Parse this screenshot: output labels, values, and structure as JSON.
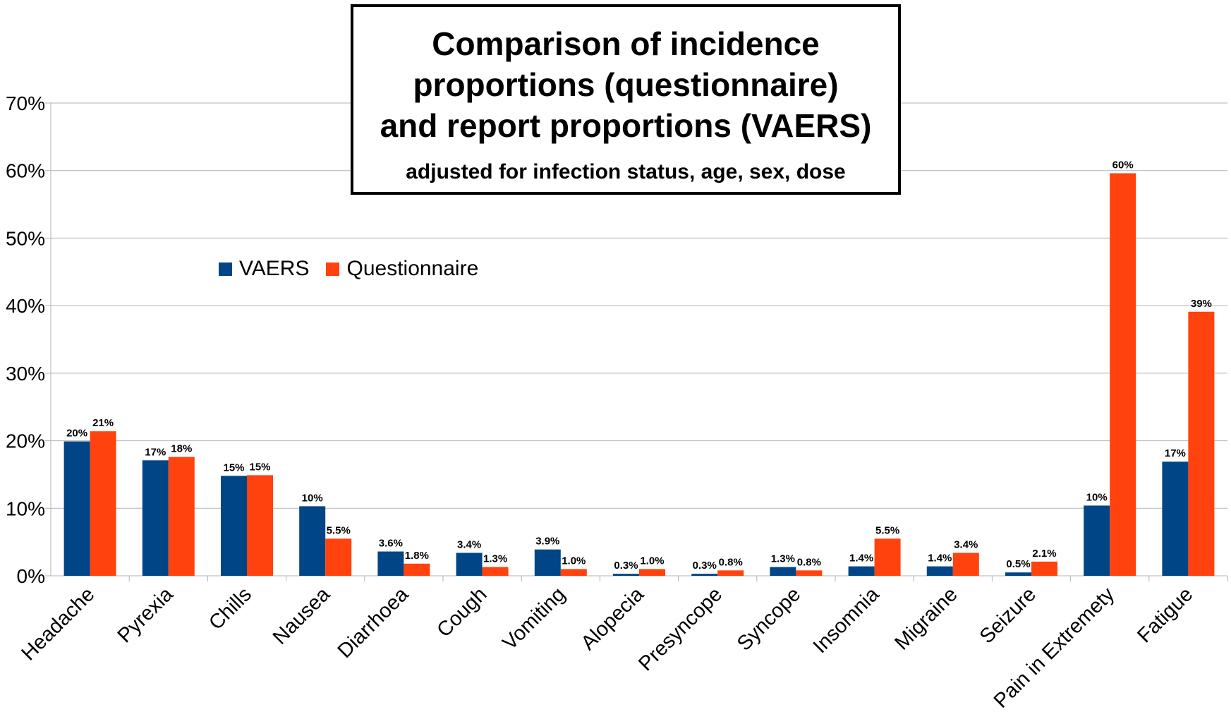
{
  "chart_data": {
    "type": "bar",
    "title": "Comparison of incidence proportions (questionnaire) and report proportions (VAERS)",
    "title_lines": [
      "Comparison of incidence",
      "proportions (questionnaire)",
      "and report proportions (VAERS)"
    ],
    "subtitle": "adjusted for infection status, age, sex, dose",
    "xlabel": "",
    "ylabel": "",
    "ylim": [
      0,
      70
    ],
    "yticks": [
      0,
      10,
      20,
      30,
      40,
      50,
      60,
      70
    ],
    "ytick_labels": [
      "0%",
      "10%",
      "20%",
      "30%",
      "40%",
      "50%",
      "60%",
      "70%"
    ],
    "grid": true,
    "legend_position": "upper-left",
    "categories": [
      "Headache",
      "Pyrexia",
      "Chills",
      "Nausea",
      "Diarrhoea",
      "Cough",
      "Vomiting",
      "Alopecia",
      "Presyncope",
      "Syncope",
      "Insomnia",
      "Migraine",
      "Seizure",
      "Pain in Extremety",
      "Fatigue"
    ],
    "series": [
      {
        "name": "VAERS",
        "color": "#004586",
        "values": [
          19.9,
          17.1,
          14.8,
          10.3,
          3.6,
          3.4,
          3.9,
          0.3,
          0.3,
          1.3,
          1.4,
          1.4,
          0.5,
          10.4,
          16.9
        ],
        "labels": [
          "20%",
          "17%",
          "15%",
          "10%",
          "3.6%",
          "3.4%",
          "3.9%",
          "0.3%",
          "0.3%",
          "1.3%",
          "1.4%",
          "1.4%",
          "0.5%",
          "10%",
          "17%"
        ]
      },
      {
        "name": "Questionnaire",
        "color": "#ff420e",
        "values": [
          21.4,
          17.6,
          14.9,
          5.5,
          1.8,
          1.3,
          1.0,
          1.0,
          0.8,
          0.8,
          5.5,
          3.4,
          2.1,
          59.6,
          39.1
        ],
        "labels": [
          "21%",
          "18%",
          "15%",
          "5.5%",
          "1.8%",
          "1.3%",
          "1.0%",
          "1.0%",
          "0.8%",
          "0.8%",
          "5.5%",
          "3.4%",
          "2.1%",
          "60%",
          "39%"
        ]
      }
    ]
  }
}
